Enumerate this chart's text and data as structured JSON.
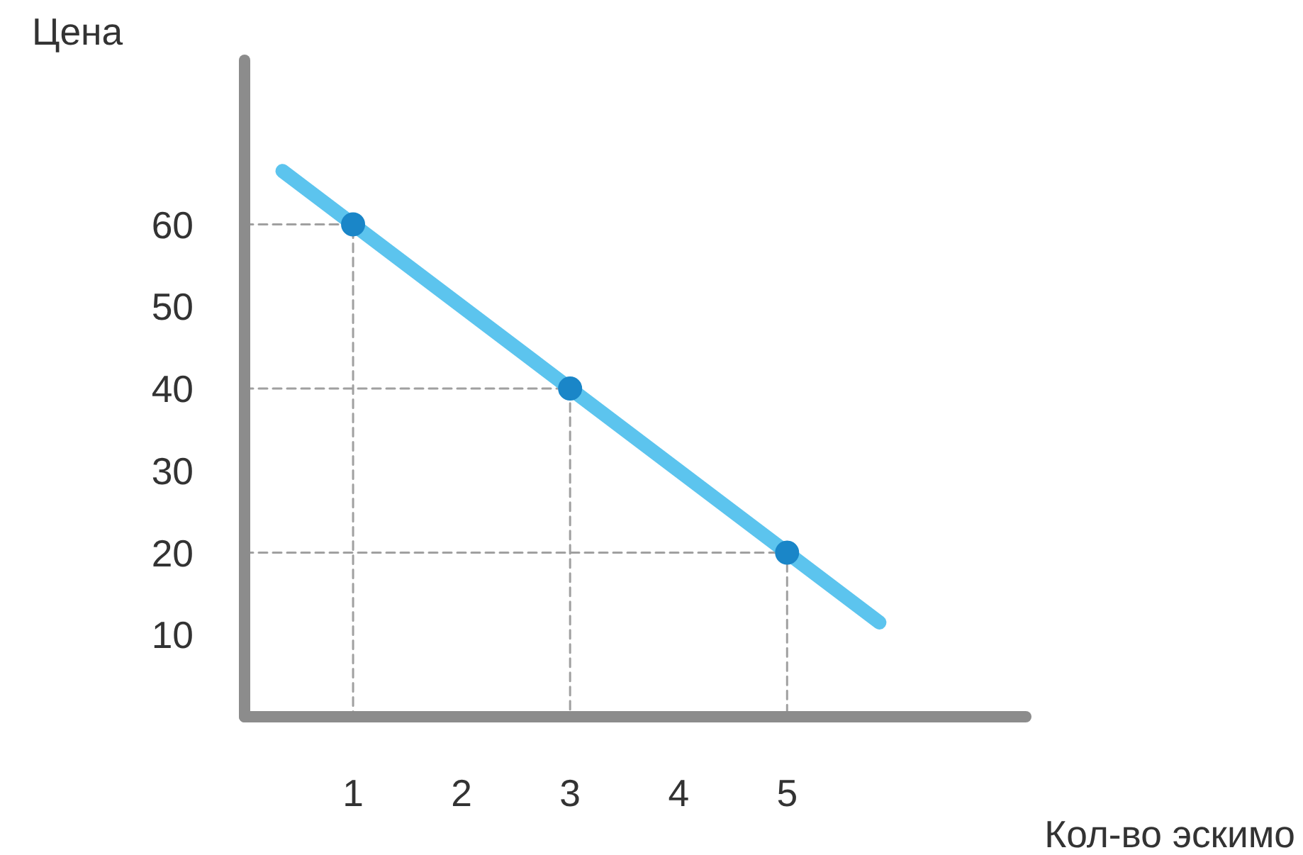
{
  "chart_data": {
    "type": "line",
    "xlabel": "Кол-во эскимо",
    "ylabel": "Цена",
    "xlim": [
      0,
      7.2
    ],
    "ylim": [
      0,
      80
    ],
    "xticks": [
      1,
      2,
      3,
      4,
      5
    ],
    "yticks": [
      10,
      20,
      30,
      40,
      50,
      60
    ],
    "grid": false,
    "series": [
      {
        "type": "line",
        "line_style": "dashed",
        "color": "#a0a0a0",
        "x": [
          0,
          1,
          1
        ],
        "values": [
          60,
          60,
          0
        ]
      },
      {
        "type": "line",
        "line_style": "dashed",
        "color": "#a0a0a0",
        "x": [
          0,
          3,
          3
        ],
        "values": [
          40,
          40,
          0
        ]
      },
      {
        "type": "line",
        "line_style": "dashed",
        "color": "#a0a0a0",
        "x": [
          0,
          5,
          5
        ],
        "values": [
          20,
          20,
          0
        ]
      },
      {
        "line_style": "solid",
        "color": "#5cc4ee",
        "x": [
          0.35,
          5.85
        ],
        "values": [
          66.5,
          11.5
        ]
      },
      {
        "type": "scatter",
        "marker": "circle",
        "color": "#1a86c8",
        "x": [
          1,
          3,
          5
        ],
        "values": [
          60,
          40,
          20
        ]
      }
    ]
  }
}
